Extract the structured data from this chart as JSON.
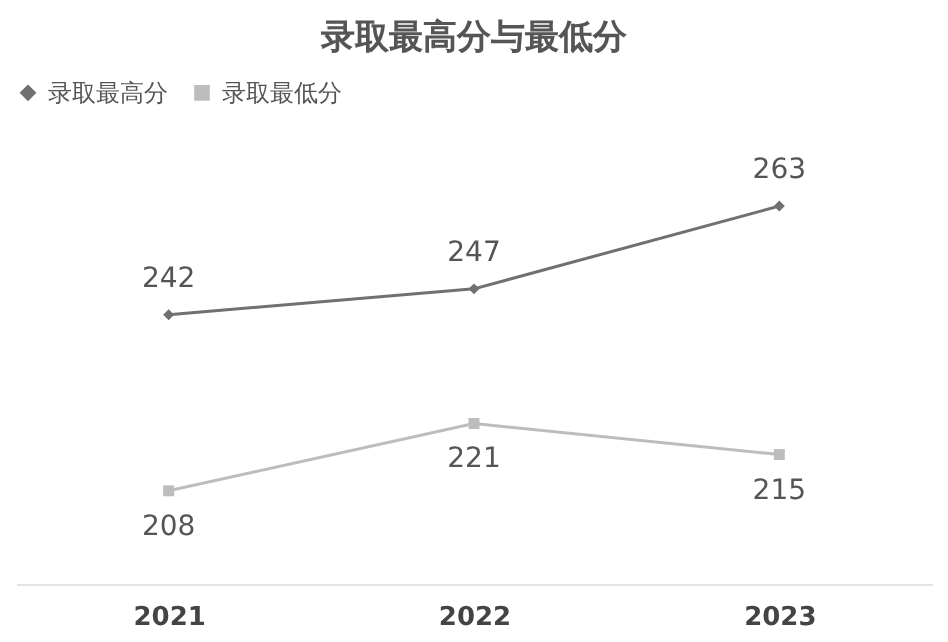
{
  "chart_data": {
    "type": "line",
    "title": "录取最高分与最低分",
    "categories": [
      "2021",
      "2022",
      "2023"
    ],
    "series": [
      {
        "name": "录取最高分",
        "color": "#707070",
        "marker": "diamond",
        "values": [
          242,
          247,
          263
        ]
      },
      {
        "name": "录取最低分",
        "color": "#bdbdbd",
        "marker": "square",
        "values": [
          208,
          221,
          215
        ]
      }
    ],
    "tick_labels": "x",
    "data_labels": true,
    "legend": "top",
    "grid": false
  }
}
